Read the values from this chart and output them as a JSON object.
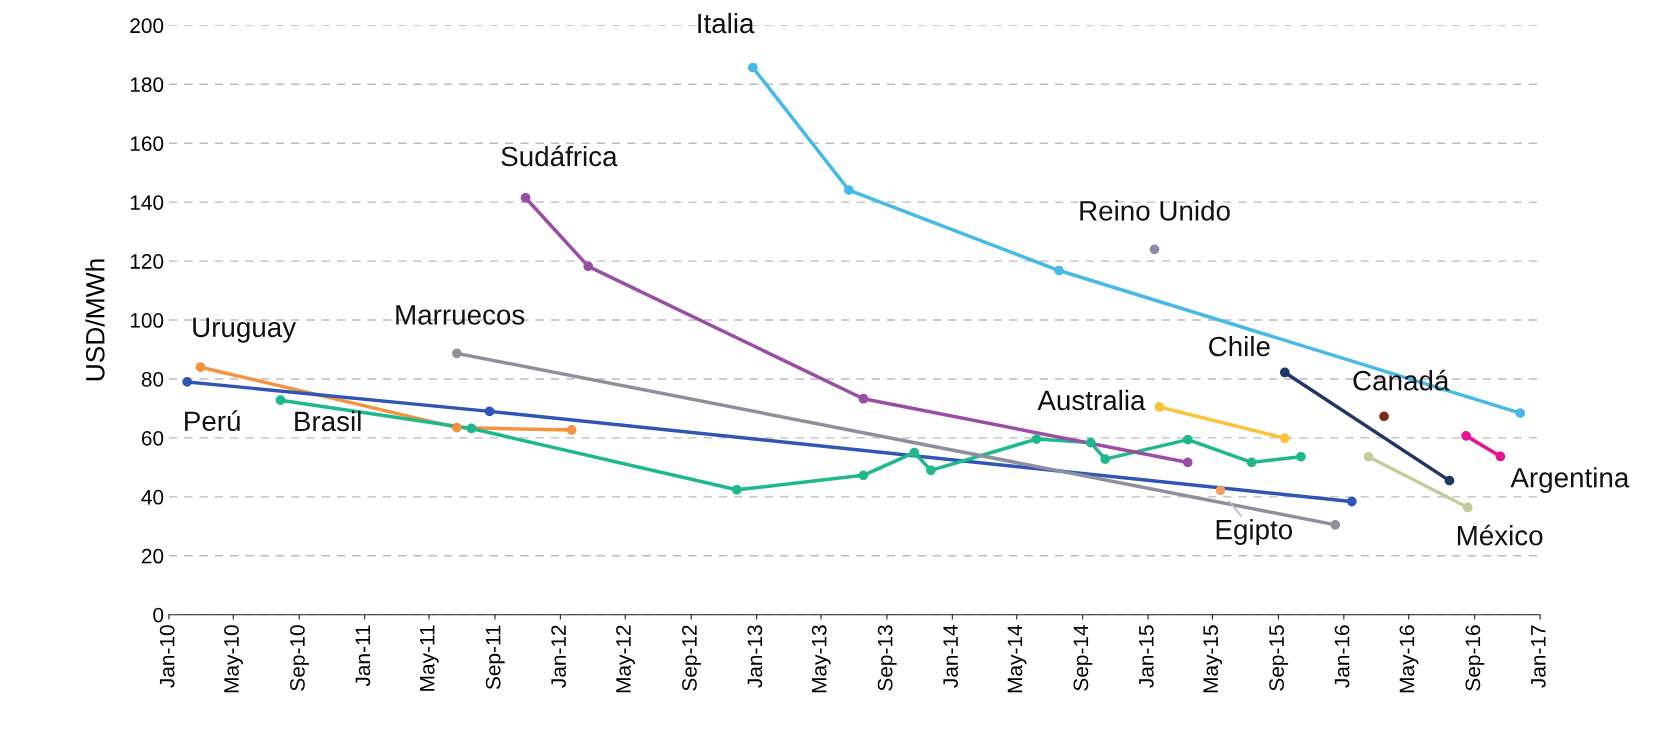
{
  "chart_data": {
    "type": "line",
    "ylabel": "USD/MWh",
    "ylim": [
      0,
      200
    ],
    "yticks": [
      0,
      20,
      40,
      60,
      80,
      100,
      120,
      140,
      160,
      180,
      200
    ],
    "xlim": [
      "2010-01-01",
      "2017-01-01"
    ],
    "xticks": [
      {
        "value": "2010-01-01",
        "label": "Jan-10"
      },
      {
        "value": "2010-05-01",
        "label": "May-10"
      },
      {
        "value": "2010-09-01",
        "label": "Sep-10"
      },
      {
        "value": "2011-01-01",
        "label": "Jan-11"
      },
      {
        "value": "2011-05-01",
        "label": "May-11"
      },
      {
        "value": "2011-09-01",
        "label": "Sep-11"
      },
      {
        "value": "2012-01-01",
        "label": "Jan-12"
      },
      {
        "value": "2012-05-01",
        "label": "May-12"
      },
      {
        "value": "2012-09-01",
        "label": "Sep-12"
      },
      {
        "value": "2013-01-01",
        "label": "Jan-13"
      },
      {
        "value": "2013-05-01",
        "label": "May-13"
      },
      {
        "value": "2013-09-01",
        "label": "Sep-13"
      },
      {
        "value": "2014-01-01",
        "label": "Jan-14"
      },
      {
        "value": "2014-05-01",
        "label": "May-14"
      },
      {
        "value": "2014-09-01",
        "label": "Sep-14"
      },
      {
        "value": "2015-01-01",
        "label": "Jan-15"
      },
      {
        "value": "2015-05-01",
        "label": "May-15"
      },
      {
        "value": "2015-09-01",
        "label": "Sep-15"
      },
      {
        "value": "2016-01-01",
        "label": "Jan-16"
      },
      {
        "value": "2016-05-01",
        "label": "May-16"
      },
      {
        "value": "2016-09-01",
        "label": "Sep-16"
      },
      {
        "value": "2017-01-01",
        "label": "Jan-17"
      }
    ],
    "grid": "y",
    "legend": false,
    "marker": "circle",
    "line_style": "solid",
    "series": [
      {
        "name": "Uruguay",
        "color": "#f5923e",
        "x": [
          "2010-03-01",
          "2011-06-22",
          "2012-01-22"
        ],
        "values": [
          84,
          63.5,
          62.7
        ]
      },
      {
        "name": "Perú",
        "color": "#2f55b5",
        "x": [
          "2010-02-04",
          "2011-08-22",
          "2016-01-16"
        ],
        "values": [
          79,
          69,
          38.4
        ]
      },
      {
        "name": "Brasil",
        "color": "#1db88e",
        "x": [
          "2010-07-28",
          "2011-07-19",
          "2012-11-25",
          "2013-07-19",
          "2013-10-22",
          "2013-11-22",
          "2014-06-07",
          "2014-09-16",
          "2014-10-13",
          "2015-03-16",
          "2015-07-13",
          "2015-10-13"
        ],
        "values": [
          72.8,
          63.2,
          42.4,
          47.3,
          55,
          49,
          59.6,
          58.4,
          52.8,
          59.4,
          51.7,
          53.6
        ]
      },
      {
        "name": "Marruecos",
        "color": "#8e8f9c",
        "x": [
          "2011-06-22",
          "2015-12-16"
        ],
        "values": [
          88.7,
          30.5
        ]
      },
      {
        "name": "Sudáfrica",
        "color": "#984ea3",
        "x": [
          "2011-10-28",
          "2012-02-22",
          "2013-07-19",
          "2015-03-16"
        ],
        "values": [
          141.5,
          118.2,
          73.3,
          51.7
        ]
      },
      {
        "name": "Italia",
        "color": "#45b9e8",
        "x": [
          "2012-12-25",
          "2013-06-22",
          "2014-07-19",
          "2016-11-25"
        ],
        "values": [
          185.7,
          144.1,
          116.8,
          68.4
        ]
      },
      {
        "name": "Reino Unido",
        "color": "#8f8aa8",
        "x": [
          "2015-01-13"
        ],
        "values": [
          124
        ]
      },
      {
        "name": "Australia",
        "color": "#fbc23a",
        "x": [
          "2015-01-22",
          "2015-09-13"
        ],
        "values": [
          70.5,
          59.9
        ]
      },
      {
        "name": "Egipto",
        "color": "#f0a060",
        "x": [
          "2015-05-16"
        ],
        "values": [
          42.2
        ]
      },
      {
        "name": "Chile",
        "color": "#1f3766",
        "x": [
          "2015-09-13",
          "2016-07-16"
        ],
        "values": [
          82.2,
          45.5
        ]
      },
      {
        "name": "Canadá",
        "color": "#7a2a1a",
        "x": [
          "2016-03-16"
        ],
        "values": [
          67.3
        ]
      },
      {
        "name": "Argentina",
        "color": "#e0158f",
        "x": [
          "2016-08-16",
          "2016-10-19"
        ],
        "values": [
          60.7,
          53.7
        ]
      },
      {
        "name": "México",
        "color": "#c0cc99",
        "x": [
          "2016-02-16",
          "2016-08-19"
        ],
        "values": [
          53.6,
          36.4
        ]
      }
    ]
  }
}
